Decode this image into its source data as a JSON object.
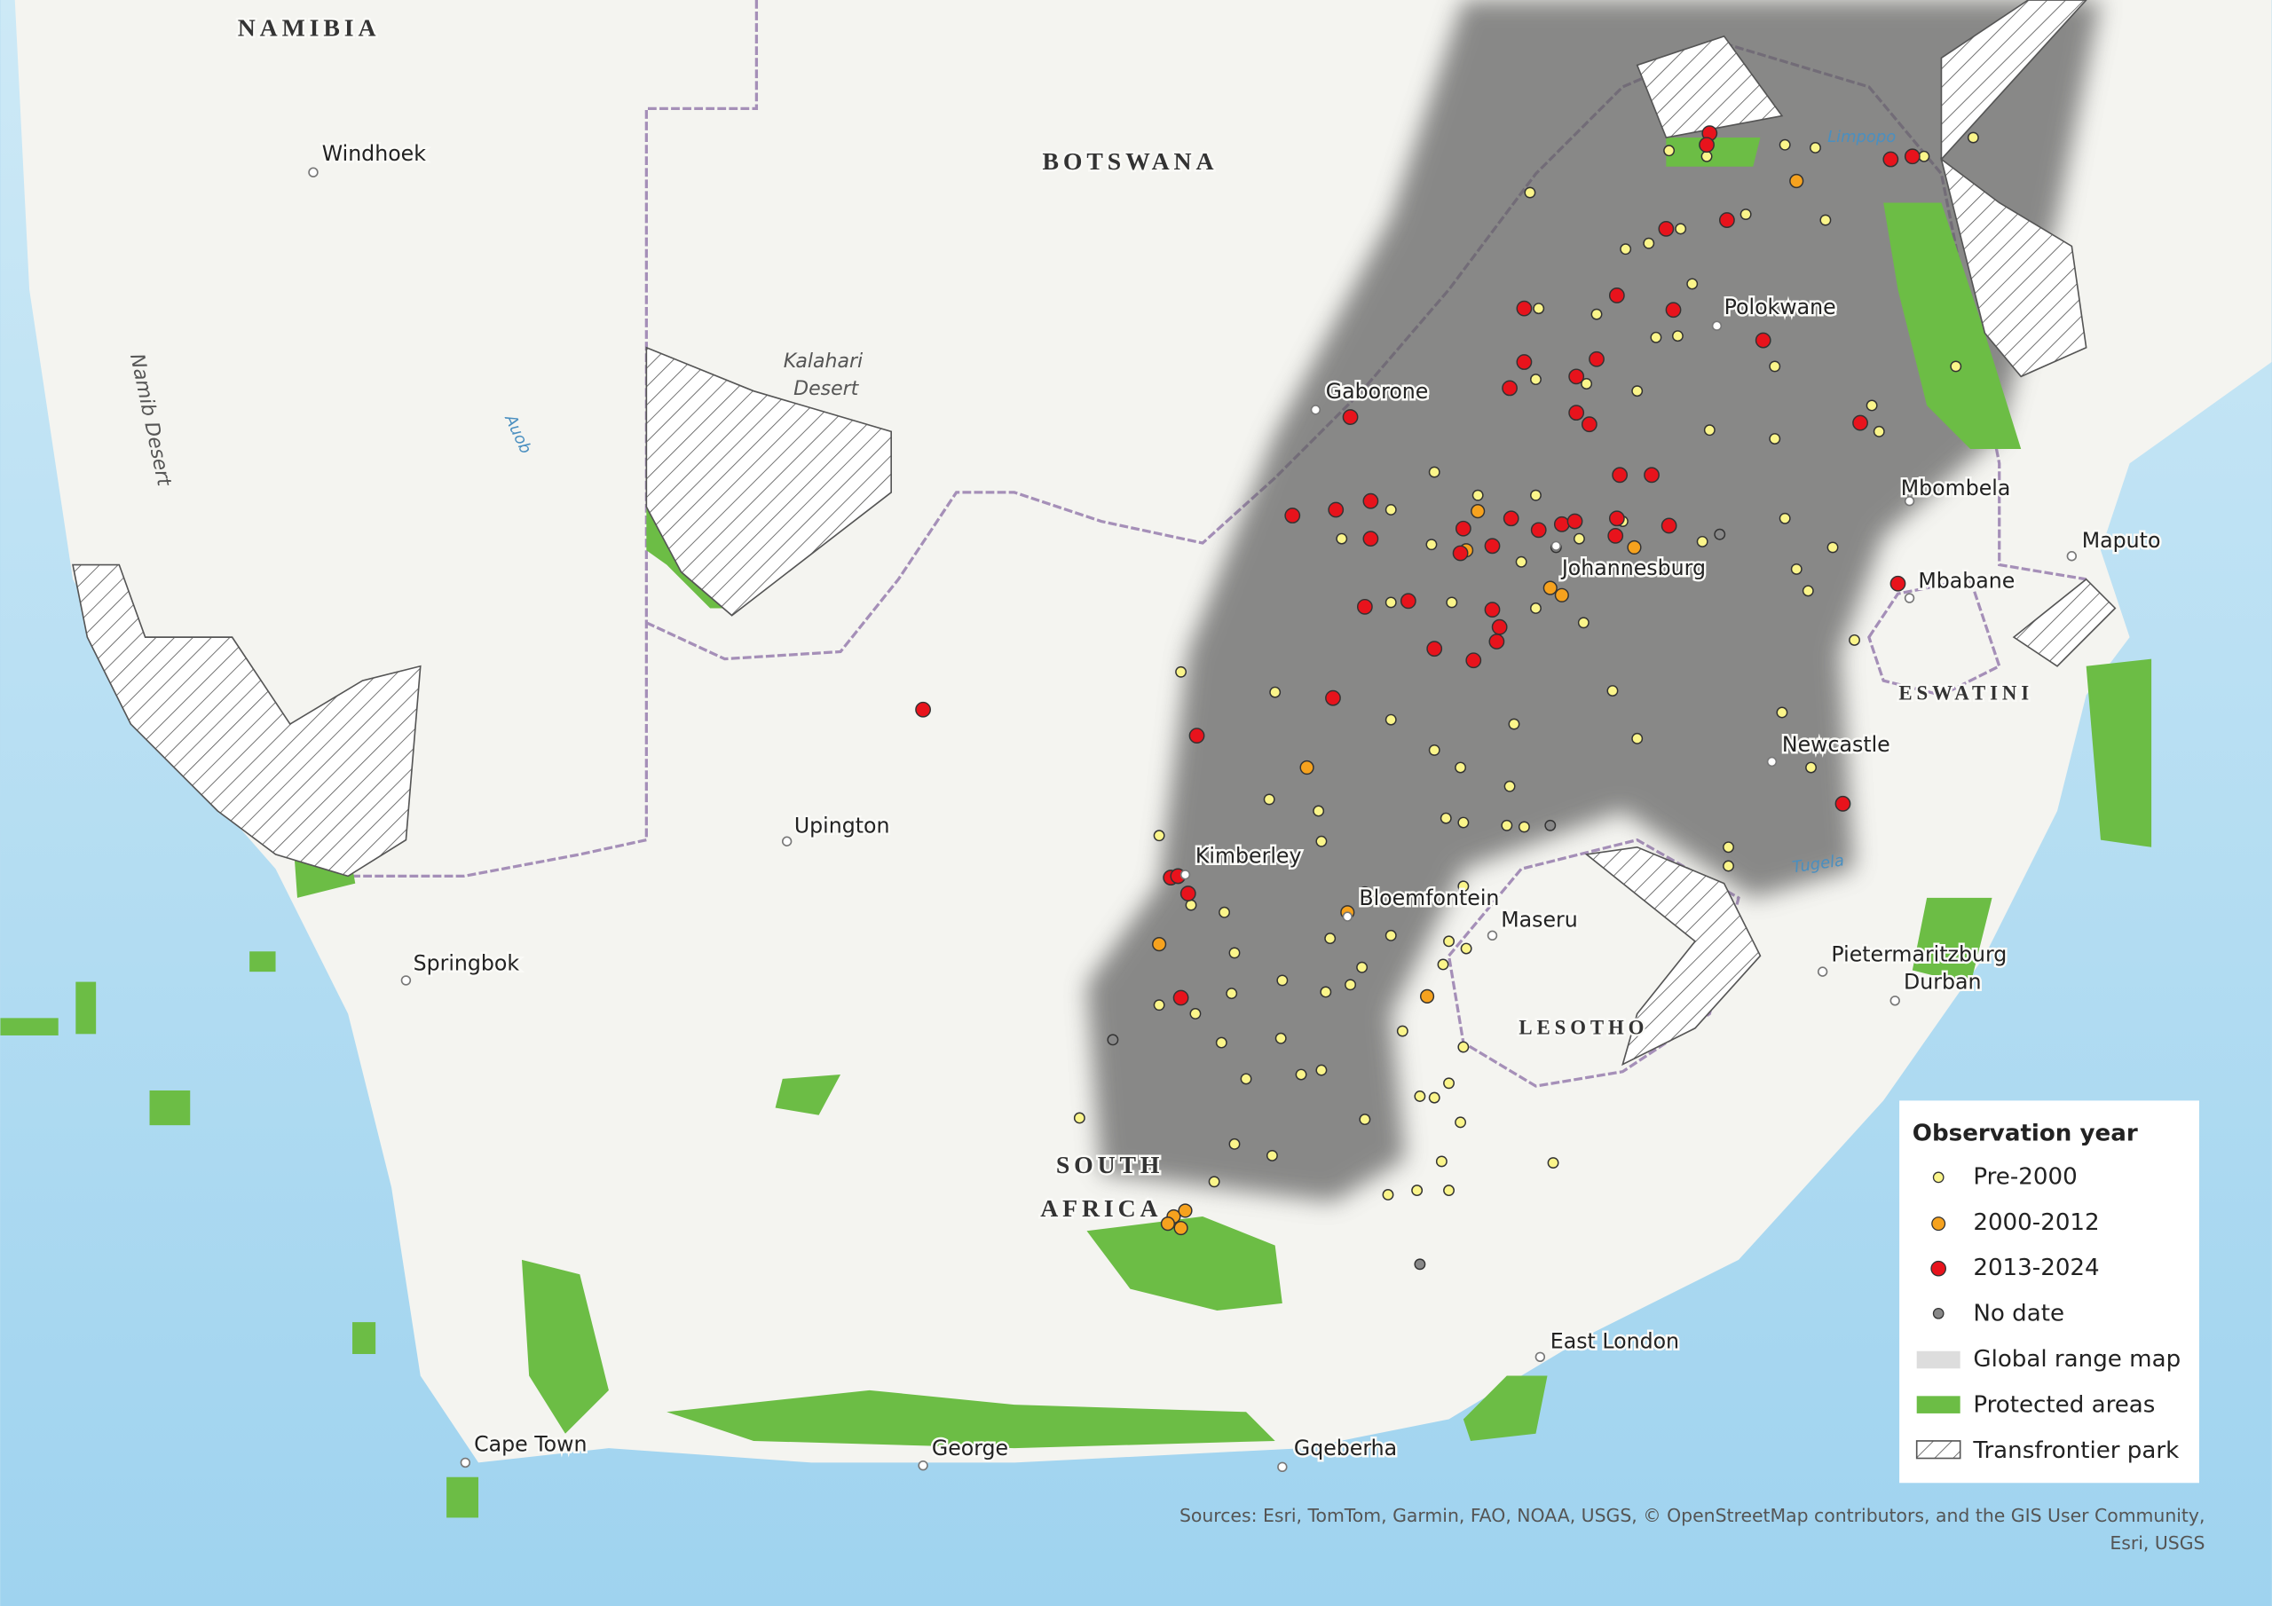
{
  "countries": [
    "NAMIBIA",
    "BOTSWANA",
    "LESOTHO",
    "ESWATINI"
  ],
  "south_africa": [
    "SOUTH",
    "AFRICA"
  ],
  "cities": [
    "Windhoek",
    "Gaborone",
    "Polokwane",
    "Johannesburg",
    "Mbombela",
    "Maputo",
    "Mbabane",
    "Newcastle",
    "Upington",
    "Kimberley",
    "Bloemfontein",
    "Maseru",
    "Pietermaritzburg",
    "Durban",
    "Springbok",
    "Cape Town",
    "George",
    "Gqeberha",
    "East London"
  ],
  "kalahari_desert": [
    "Kalahari",
    "Desert"
  ],
  "namib_desert": "Namib Desert",
  "rivers": [
    "Auob",
    "Limpopo",
    "Tugela"
  ],
  "legend": {
    "title": "Observation year",
    "items": [
      "Pre-2000",
      "2000-2012",
      "2013-2024",
      "No date",
      "Global range map",
      "Protected areas",
      "Transfrontier park"
    ]
  },
  "attribution": [
    "Sources: Esri, TomTom, Garmin, FAO, NOAA, USGS, © OpenStreetMap contributors, and the GIS User Community,",
    "Esri, USGS"
  ]
}
